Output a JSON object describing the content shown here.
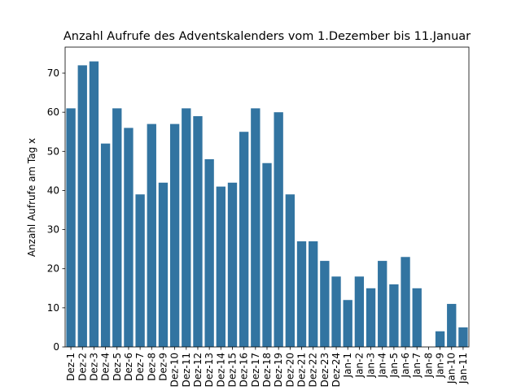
{
  "chart_data": {
    "type": "bar",
    "title": "Anzahl Aufrufe des Adventskalenders vom 1.Dezember bis 11.Januar",
    "xlabel": "",
    "ylabel": "Anzahl Aufrufe am Tag x",
    "categories": [
      "Dez-1",
      "Dez-2",
      "Dez-3",
      "Dez-4",
      "Dez-5",
      "Dez-6",
      "Dez-7",
      "Dez-8",
      "Dez-9",
      "Dez-10",
      "Dez-11",
      "Dez-12",
      "Dez-13",
      "Dez-14",
      "Dez-15",
      "Dez-16",
      "Dez-17",
      "Dez-18",
      "Dez-19",
      "Dez-20",
      "Dez-21",
      "Dez-22",
      "Dez-23",
      "Dez-24",
      "Jan-1",
      "Jan-2",
      "Jan-3",
      "Jan-4",
      "Jan-5",
      "Jan-6",
      "Jan-7",
      "Jan-8",
      "Jan-9",
      "Jan-10",
      "Jan-11"
    ],
    "values": [
      61,
      72,
      73,
      52,
      61,
      56,
      39,
      57,
      42,
      57,
      61,
      59,
      48,
      41,
      42,
      55,
      61,
      47,
      60,
      39,
      27,
      27,
      22,
      18,
      12,
      18,
      15,
      22,
      16,
      23,
      15,
      0,
      4,
      11,
      5
    ],
    "ylim": [
      0,
      76.65
    ],
    "yticks": [
      0,
      10,
      20,
      30,
      40,
      50,
      60,
      70
    ],
    "grid": false,
    "bar_color": "#3274a1"
  }
}
